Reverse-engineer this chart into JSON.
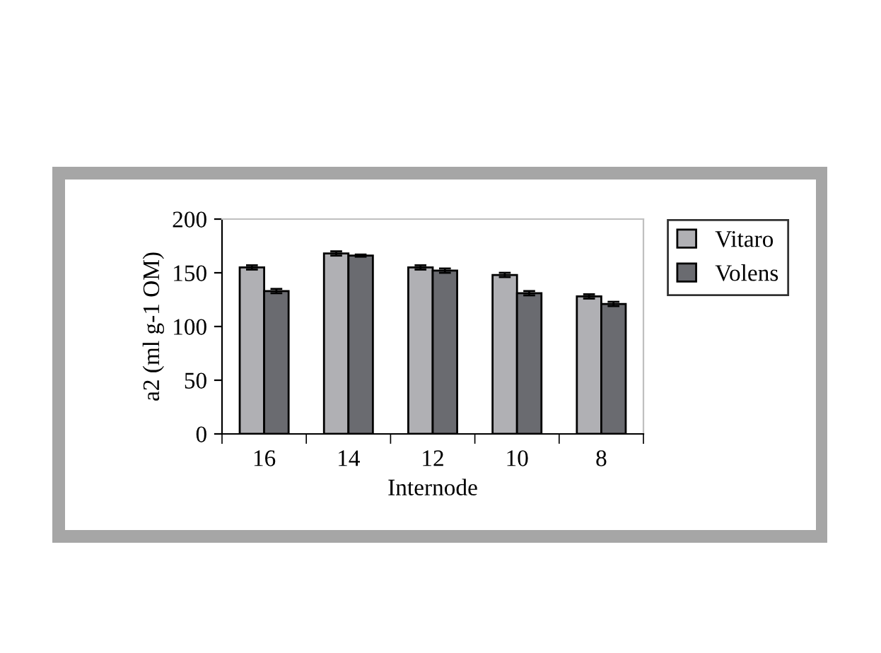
{
  "chart_data": {
    "type": "bar",
    "xlabel": "Internode",
    "ylabel": "a2 (ml g-1 OM)",
    "categories": [
      "16",
      "14",
      "12",
      "10",
      "8"
    ],
    "series": [
      {
        "name": "Vitaro",
        "color": "#b0b0b4",
        "values": [
          155,
          168,
          155,
          148,
          128
        ],
        "errors": [
          2,
          2,
          2,
          2,
          2
        ]
      },
      {
        "name": "Volens",
        "color": "#6a6b70",
        "values": [
          133,
          166,
          152,
          131,
          121
        ],
        "errors": [
          2,
          1,
          2,
          2,
          2
        ]
      }
    ],
    "ylim": [
      0,
      200
    ],
    "yticks": [
      0,
      50,
      100,
      150,
      200
    ],
    "grid": false,
    "legend": "right"
  }
}
